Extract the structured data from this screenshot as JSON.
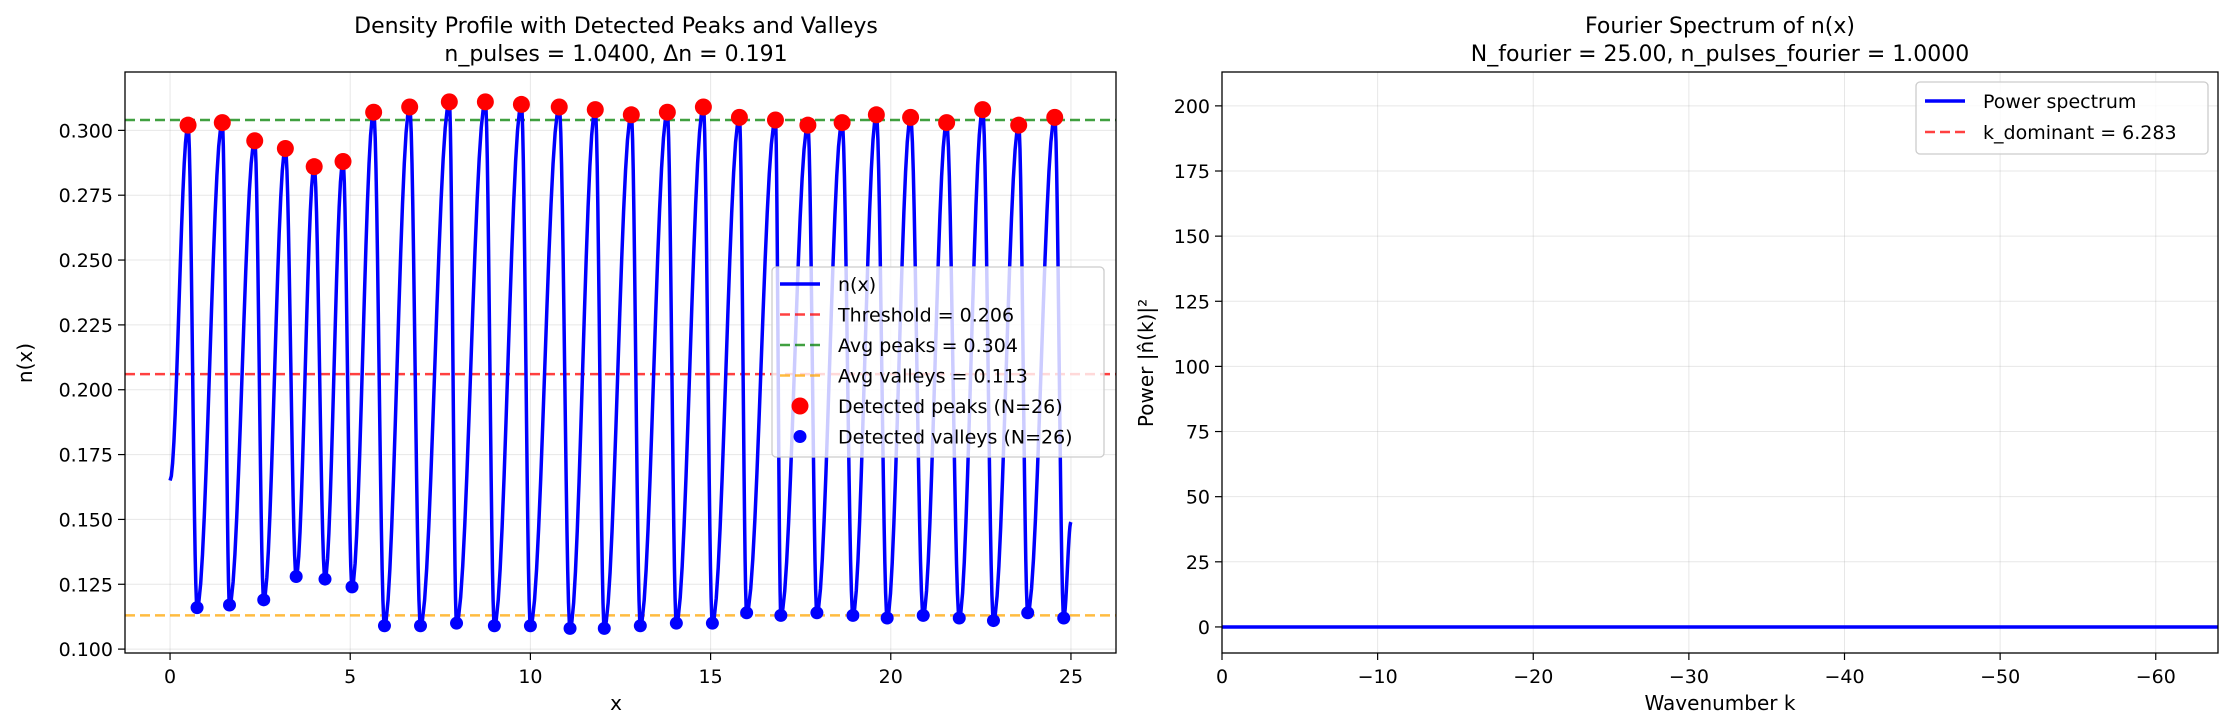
{
  "chart_data": [
    {
      "type": "line",
      "title": "Density Profile with Detected Peaks and Valleys",
      "subtitle": "n_pulses = 1.0400, Δn = 0.191",
      "xlabel": "x",
      "ylabel": "n(x)",
      "xlim": [
        -1.25,
        26.25
      ],
      "ylim": [
        0.0985,
        0.3225
      ],
      "xticks": [
        0,
        5,
        10,
        15,
        20,
        25
      ],
      "xtick_labels": [
        "0",
        "5",
        "10",
        "15",
        "20",
        "25"
      ],
      "yticks": [
        0.1,
        0.125,
        0.15,
        0.175,
        0.2,
        0.225,
        0.25,
        0.275,
        0.3
      ],
      "ytick_labels": [
        "0.100",
        "0.125",
        "0.150",
        "0.175",
        "0.200",
        "0.225",
        "0.250",
        "0.275",
        "0.300"
      ],
      "grid": true,
      "legend_position": "center-right",
      "series": [
        {
          "name": "n(x)",
          "kind": "line",
          "color": "#0000ff"
        },
        {
          "name": "Threshold = 0.206",
          "kind": "hline",
          "color": "#ff0000",
          "y": 0.206
        },
        {
          "name": "Avg peaks = 0.304",
          "kind": "hline",
          "color": "#008000",
          "y": 0.304
        },
        {
          "name": "Avg valleys = 0.113",
          "kind": "hline",
          "color": "#ffa500",
          "y": 0.113
        },
        {
          "name": "Detected peaks (N=26)",
          "kind": "markers",
          "color": "#ff0000",
          "points": [
            [
              0.5,
              0.302
            ],
            [
              1.45,
              0.303
            ],
            [
              2.35,
              0.296
            ],
            [
              3.2,
              0.293
            ],
            [
              4.0,
              0.286
            ],
            [
              4.8,
              0.288
            ],
            [
              5.65,
              0.307
            ],
            [
              6.65,
              0.309
            ],
            [
              7.75,
              0.311
            ],
            [
              8.75,
              0.311
            ],
            [
              9.75,
              0.31
            ],
            [
              10.8,
              0.309
            ],
            [
              11.8,
              0.308
            ],
            [
              12.8,
              0.306
            ],
            [
              13.8,
              0.307
            ],
            [
              14.8,
              0.309
            ],
            [
              15.8,
              0.305
            ],
            [
              16.8,
              0.304
            ],
            [
              17.7,
              0.302
            ],
            [
              18.65,
              0.303
            ],
            [
              19.6,
              0.306
            ],
            [
              20.55,
              0.305
            ],
            [
              21.55,
              0.303
            ],
            [
              22.55,
              0.308
            ],
            [
              23.55,
              0.302
            ],
            [
              24.55,
              0.305
            ]
          ]
        },
        {
          "name": "Detected valleys (N=26)",
          "kind": "markers",
          "color": "#0000ff",
          "points": [
            [
              0.75,
              0.116
            ],
            [
              1.65,
              0.117
            ],
            [
              2.6,
              0.119
            ],
            [
              3.5,
              0.128
            ],
            [
              4.3,
              0.127
            ],
            [
              5.05,
              0.124
            ],
            [
              5.95,
              0.109
            ],
            [
              6.95,
              0.109
            ],
            [
              7.95,
              0.11
            ],
            [
              9.0,
              0.109
            ],
            [
              10.0,
              0.109
            ],
            [
              11.1,
              0.108
            ],
            [
              12.05,
              0.108
            ],
            [
              13.05,
              0.109
            ],
            [
              14.05,
              0.11
            ],
            [
              15.05,
              0.11
            ],
            [
              16.0,
              0.114
            ],
            [
              16.95,
              0.113
            ],
            [
              17.95,
              0.114
            ],
            [
              18.95,
              0.113
            ],
            [
              19.9,
              0.112
            ],
            [
              20.9,
              0.113
            ],
            [
              21.9,
              0.112
            ],
            [
              22.85,
              0.111
            ],
            [
              23.8,
              0.114
            ],
            [
              24.8,
              0.112
            ]
          ]
        }
      ],
      "line_start": [
        0,
        0.165
      ],
      "line_end": [
        25,
        0.149
      ]
    },
    {
      "type": "line",
      "title": "Fourier Spectrum of n(x)",
      "subtitle": "N_fourier = 25.00, n_pulses_fourier = 1.0000",
      "xlabel": "Wavenumber k",
      "ylabel": "Power |n̂(k)|²",
      "xlim": [
        0,
        -64
      ],
      "ylim": [
        -10,
        213
      ],
      "xticks": [
        0,
        -10,
        -20,
        -30,
        -40,
        -50,
        -60
      ],
      "xtick_labels": [
        "0",
        "−10",
        "−20",
        "−30",
        "−40",
        "−50",
        "−60"
      ],
      "yticks": [
        0,
        25,
        50,
        75,
        100,
        125,
        150,
        175,
        200
      ],
      "ytick_labels": [
        "0",
        "25",
        "50",
        "75",
        "100",
        "125",
        "150",
        "175",
        "200"
      ],
      "grid": true,
      "legend_position": "top-right",
      "series": [
        {
          "name": "Power spectrum",
          "kind": "line",
          "color": "#0000ff",
          "x": [
            0,
            -64
          ],
          "y": [
            0,
            0
          ]
        },
        {
          "name": "k_dominant = 6.283",
          "kind": "vline",
          "color": "#ff0000",
          "x": 6.283
        }
      ]
    }
  ]
}
